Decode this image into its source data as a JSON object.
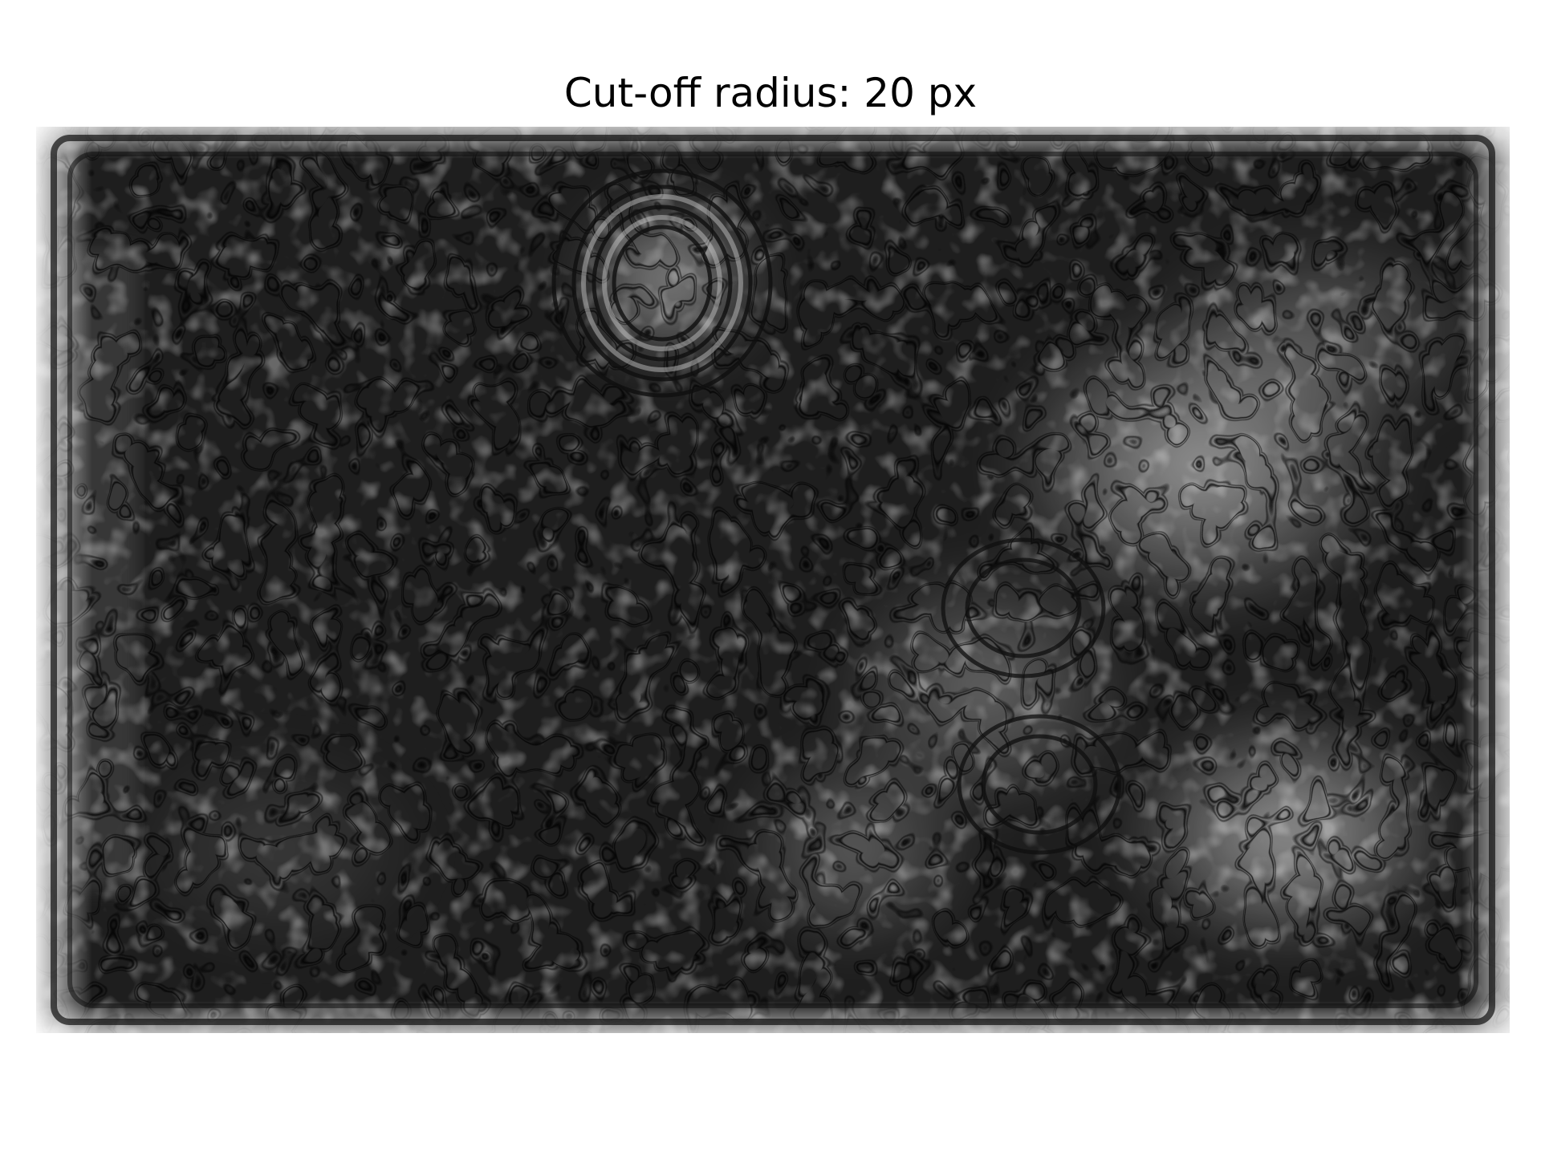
{
  "figure": {
    "title": "Cut-off radius: 20 px"
  },
  "image": {
    "description_colors": {
      "background": "#ffffff",
      "image_dark": "#1c1c1c",
      "image_mid": "#4a4a4a",
      "image_bright": "#e6e6e6"
    },
    "colormap": "gray",
    "axes_visible": false
  }
}
